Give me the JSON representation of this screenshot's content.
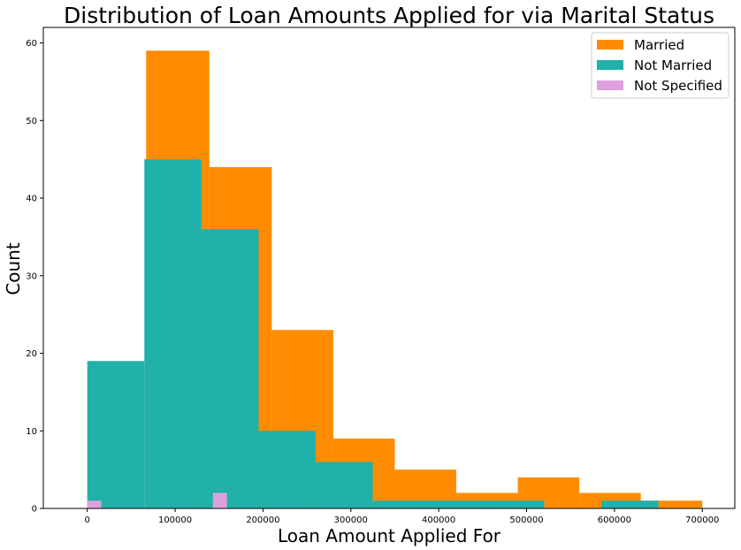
{
  "chart_data": {
    "type": "bar",
    "subtype": "histogram",
    "title": "Distribution of Loan Amounts Applied for via Marital Status",
    "xlabel": "Loan Amount Applied For",
    "ylabel": "Count",
    "xlim": [
      -50000,
      737000
    ],
    "ylim": [
      0,
      62
    ],
    "xticks": [
      0,
      100000,
      200000,
      300000,
      400000,
      500000,
      600000,
      700000
    ],
    "yticks": [
      0,
      10,
      20,
      30,
      40,
      50,
      60
    ],
    "grid": false,
    "legend_position": "top-right",
    "series": [
      {
        "name": "Married",
        "color": "#ff8c00",
        "bins": [
          {
            "x0": 67000,
            "x1": 139000,
            "count": 59
          },
          {
            "x0": 139000,
            "x1": 210000,
            "count": 44
          },
          {
            "x0": 210000,
            "x1": 280000,
            "count": 23
          },
          {
            "x0": 280000,
            "x1": 350000,
            "count": 9
          },
          {
            "x0": 350000,
            "x1": 420000,
            "count": 5
          },
          {
            "x0": 420000,
            "x1": 490000,
            "count": 2
          },
          {
            "x0": 490000,
            "x1": 560000,
            "count": 4
          },
          {
            "x0": 560000,
            "x1": 630000,
            "count": 2
          },
          {
            "x0": 630000,
            "x1": 700000,
            "count": 1
          }
        ]
      },
      {
        "name": "Not Married",
        "color": "#20b2aa",
        "bins": [
          {
            "x0": 0,
            "x1": 65000,
            "count": 19
          },
          {
            "x0": 65000,
            "x1": 130000,
            "count": 45
          },
          {
            "x0": 130000,
            "x1": 195000,
            "count": 36
          },
          {
            "x0": 195000,
            "x1": 260000,
            "count": 10
          },
          {
            "x0": 260000,
            "x1": 325000,
            "count": 6
          },
          {
            "x0": 325000,
            "x1": 390000,
            "count": 1
          },
          {
            "x0": 390000,
            "x1": 455000,
            "count": 1
          },
          {
            "x0": 455000,
            "x1": 520000,
            "count": 1
          },
          {
            "x0": 520000,
            "x1": 585000,
            "count": 0
          },
          {
            "x0": 585000,
            "x1": 650000,
            "count": 1
          }
        ]
      },
      {
        "name": "Not Specified",
        "color": "#dda0dd",
        "bins": [
          {
            "x0": 0,
            "x1": 16000,
            "count": 1
          },
          {
            "x0": 143000,
            "x1": 159000,
            "count": 2
          }
        ]
      }
    ]
  }
}
